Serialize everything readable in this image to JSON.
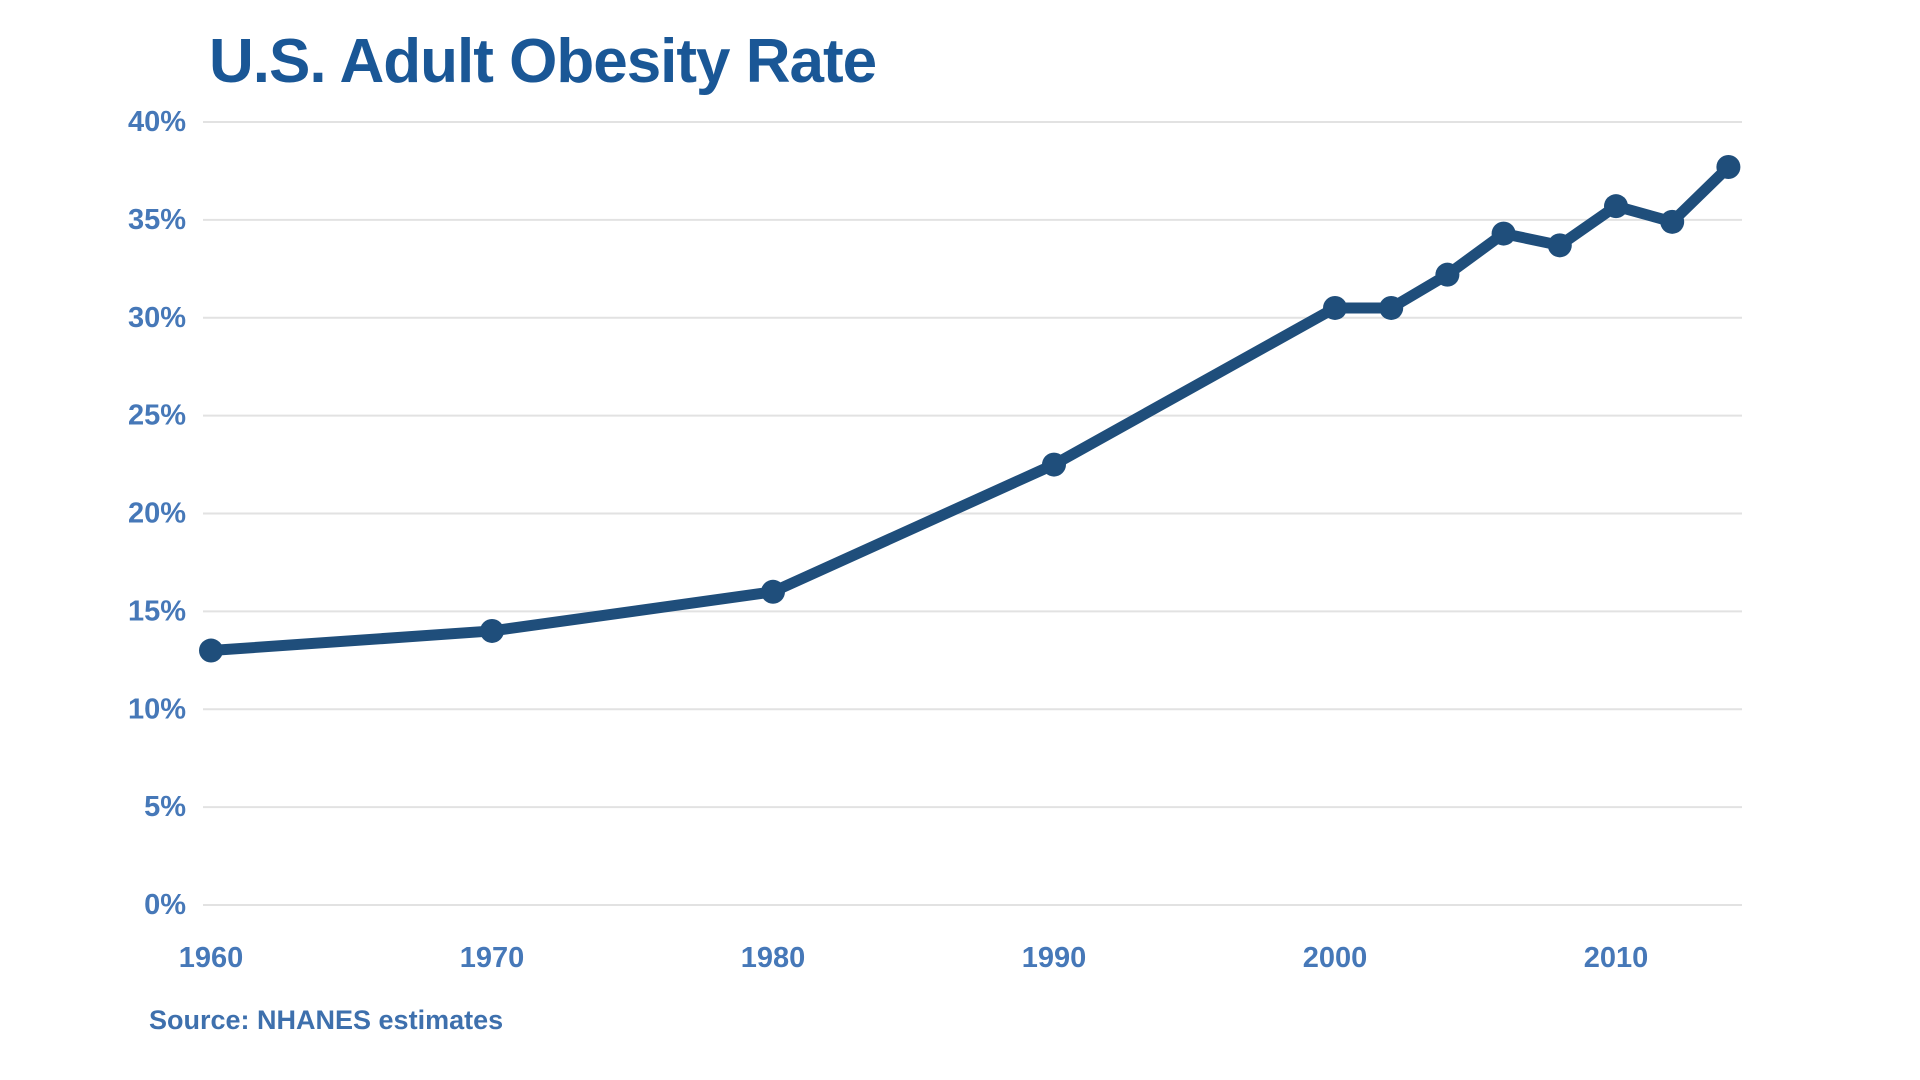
{
  "chart_data": {
    "type": "line",
    "title": "U.S. Adult Obesity Rate",
    "source": "Source: NHANES estimates",
    "x": [
      1960,
      1970,
      1980,
      1990,
      2000,
      2002,
      2004,
      2006,
      2008,
      2010,
      2012,
      2014
    ],
    "values": [
      13.0,
      14.0,
      16.0,
      22.5,
      30.5,
      30.5,
      32.2,
      34.3,
      33.7,
      35.7,
      34.9,
      37.7
    ],
    "ylim": [
      0,
      40
    ],
    "ytick_step": 5,
    "ytick_suffix": "%",
    "xticks": [
      1960,
      1970,
      1980,
      1990,
      2000,
      2010
    ],
    "grid": "horizontal-only",
    "legend": "none",
    "marker": "filled-circle",
    "colors": {
      "line": "#1f4e7b",
      "title": "#1a5796",
      "ticks": "#4678b8",
      "grid": "#e2e2e2",
      "source": "#3e70ad",
      "bg": "#ffffff"
    }
  }
}
